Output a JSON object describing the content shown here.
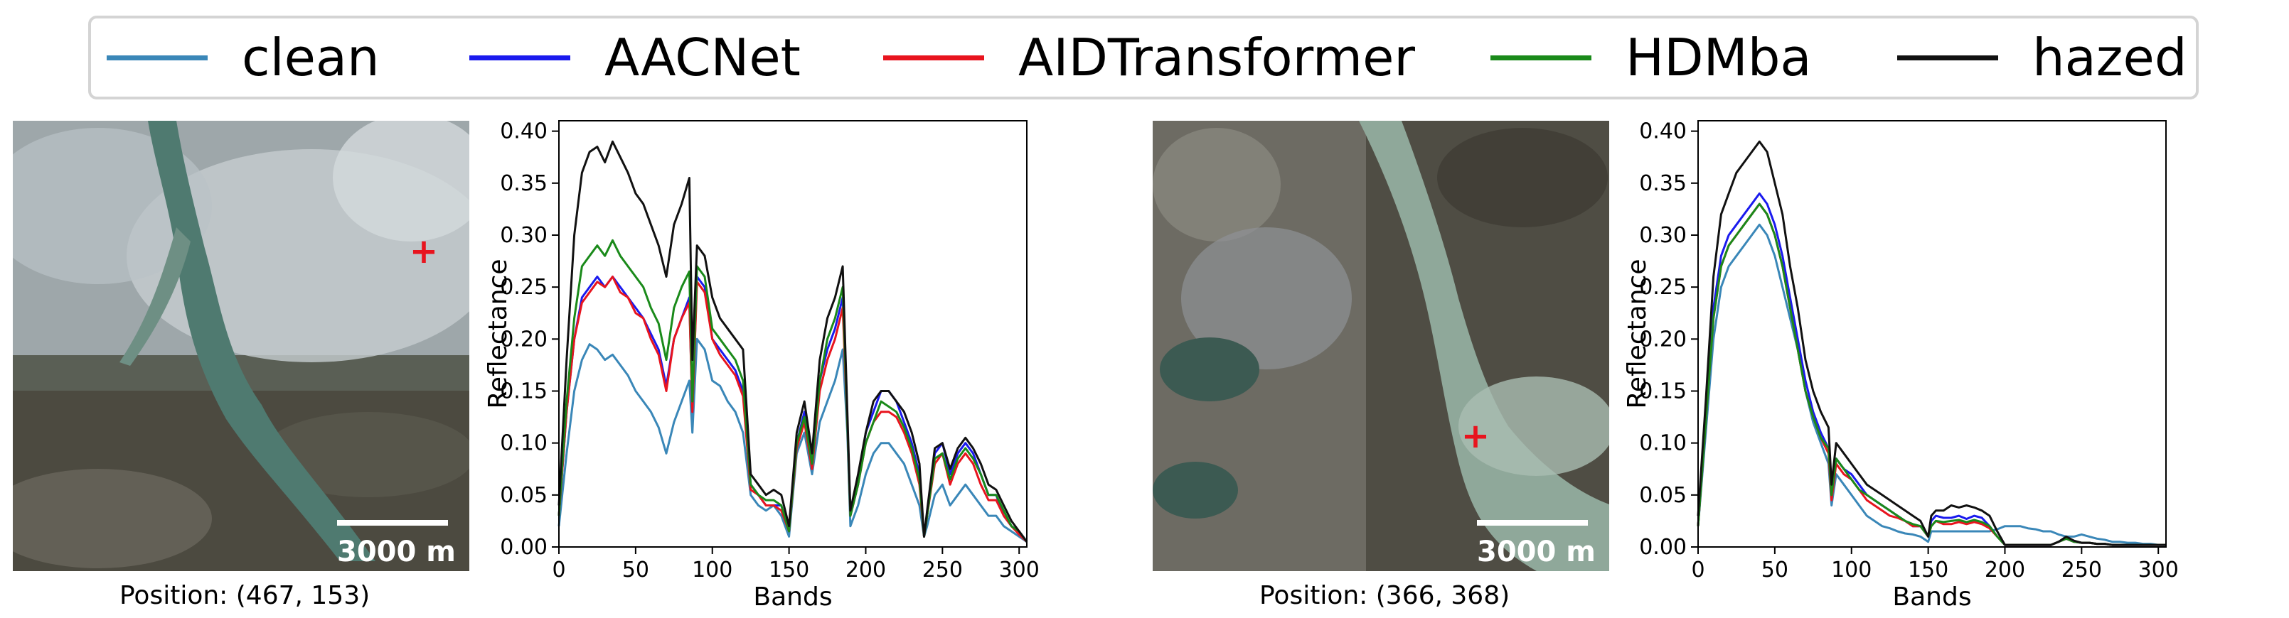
{
  "legend": {
    "items": [
      {
        "label": "clean",
        "color": "#3a87b8"
      },
      {
        "label": "AACNet",
        "color": "#1a1aee"
      },
      {
        "label": "AIDTransformer",
        "color": "#e8141e"
      },
      {
        "label": "HDMba",
        "color": "#1a8a1a"
      },
      {
        "label": "hazed",
        "color": "#111111"
      }
    ]
  },
  "scenes": [
    {
      "scale_label": "3000 m",
      "marker": "+",
      "caption": "Position: (467, 153)"
    },
    {
      "scale_label": "3000 m",
      "marker": "+",
      "caption": "Position: (366, 368)"
    }
  ],
  "chart_data": [
    {
      "type": "line",
      "xlabel": "Bands",
      "ylabel": "Reflectance",
      "xlim": [
        0,
        305
      ],
      "ylim": [
        0,
        0.41
      ],
      "xticks": [
        0,
        50,
        100,
        150,
        200,
        250,
        300
      ],
      "yticks": [
        0.0,
        0.05,
        0.1,
        0.15,
        0.2,
        0.25,
        0.3,
        0.35,
        0.4
      ],
      "x": [
        0,
        5,
        10,
        15,
        20,
        25,
        30,
        35,
        40,
        45,
        50,
        55,
        60,
        65,
        70,
        75,
        80,
        85,
        87,
        90,
        95,
        100,
        105,
        110,
        115,
        120,
        125,
        130,
        135,
        140,
        145,
        150,
        155,
        160,
        165,
        170,
        175,
        180,
        185,
        188,
        190,
        195,
        200,
        205,
        210,
        215,
        220,
        225,
        230,
        235,
        238,
        240,
        245,
        250,
        255,
        260,
        265,
        270,
        275,
        280,
        285,
        290,
        295,
        300,
        305
      ],
      "series": [
        {
          "name": "clean",
          "color": "#3a87b8",
          "values": [
            0.02,
            0.09,
            0.15,
            0.18,
            0.195,
            0.19,
            0.18,
            0.185,
            0.175,
            0.165,
            0.15,
            0.14,
            0.13,
            0.115,
            0.09,
            0.12,
            0.14,
            0.16,
            0.11,
            0.2,
            0.19,
            0.16,
            0.155,
            0.14,
            0.13,
            0.11,
            0.05,
            0.04,
            0.035,
            0.04,
            0.03,
            0.01,
            0.09,
            0.11,
            0.07,
            0.12,
            0.14,
            0.16,
            0.19,
            0.11,
            0.02,
            0.04,
            0.07,
            0.09,
            0.1,
            0.1,
            0.09,
            0.08,
            0.06,
            0.04,
            0.01,
            0.02,
            0.05,
            0.06,
            0.04,
            0.05,
            0.06,
            0.05,
            0.04,
            0.03,
            0.03,
            0.02,
            0.015,
            0.01,
            0.005
          ]
        },
        {
          "name": "AACNet",
          "color": "#1a1aee",
          "values": [
            0.03,
            0.13,
            0.2,
            0.24,
            0.25,
            0.26,
            0.25,
            0.26,
            0.25,
            0.24,
            0.23,
            0.22,
            0.205,
            0.19,
            0.155,
            0.2,
            0.22,
            0.24,
            0.13,
            0.26,
            0.25,
            0.2,
            0.19,
            0.18,
            0.17,
            0.15,
            0.06,
            0.05,
            0.04,
            0.04,
            0.04,
            0.015,
            0.1,
            0.13,
            0.08,
            0.16,
            0.19,
            0.21,
            0.24,
            0.12,
            0.03,
            0.06,
            0.11,
            0.13,
            0.15,
            0.15,
            0.14,
            0.12,
            0.1,
            0.07,
            0.01,
            0.03,
            0.09,
            0.1,
            0.07,
            0.09,
            0.1,
            0.09,
            0.07,
            0.05,
            0.05,
            0.03,
            0.02,
            0.015,
            0.005
          ]
        },
        {
          "name": "AIDTransformer",
          "color": "#e8141e",
          "values": [
            0.03,
            0.13,
            0.2,
            0.235,
            0.245,
            0.255,
            0.25,
            0.26,
            0.245,
            0.24,
            0.225,
            0.22,
            0.2,
            0.185,
            0.15,
            0.2,
            0.22,
            0.235,
            0.13,
            0.255,
            0.245,
            0.2,
            0.185,
            0.175,
            0.165,
            0.145,
            0.055,
            0.05,
            0.04,
            0.04,
            0.035,
            0.015,
            0.095,
            0.12,
            0.075,
            0.15,
            0.18,
            0.2,
            0.23,
            0.12,
            0.03,
            0.06,
            0.1,
            0.12,
            0.13,
            0.13,
            0.125,
            0.11,
            0.09,
            0.06,
            0.01,
            0.03,
            0.08,
            0.09,
            0.06,
            0.08,
            0.09,
            0.08,
            0.06,
            0.045,
            0.045,
            0.03,
            0.02,
            0.012,
            0.005
          ]
        },
        {
          "name": "HDMba",
          "color": "#1a8a1a",
          "values": [
            0.03,
            0.14,
            0.22,
            0.27,
            0.28,
            0.29,
            0.28,
            0.295,
            0.28,
            0.27,
            0.26,
            0.25,
            0.23,
            0.215,
            0.18,
            0.23,
            0.25,
            0.265,
            0.14,
            0.27,
            0.26,
            0.21,
            0.2,
            0.19,
            0.18,
            0.16,
            0.06,
            0.05,
            0.045,
            0.045,
            0.04,
            0.015,
            0.1,
            0.125,
            0.08,
            0.16,
            0.2,
            0.22,
            0.25,
            0.12,
            0.03,
            0.06,
            0.1,
            0.12,
            0.14,
            0.135,
            0.13,
            0.115,
            0.095,
            0.065,
            0.01,
            0.03,
            0.085,
            0.09,
            0.065,
            0.085,
            0.095,
            0.085,
            0.07,
            0.05,
            0.05,
            0.035,
            0.02,
            0.015,
            0.005
          ]
        },
        {
          "name": "hazed",
          "color": "#111111",
          "values": [
            0.04,
            0.18,
            0.3,
            0.36,
            0.38,
            0.385,
            0.37,
            0.39,
            0.375,
            0.36,
            0.34,
            0.33,
            0.31,
            0.29,
            0.26,
            0.31,
            0.33,
            0.355,
            0.18,
            0.29,
            0.28,
            0.24,
            0.22,
            0.21,
            0.2,
            0.19,
            0.07,
            0.06,
            0.05,
            0.055,
            0.05,
            0.02,
            0.11,
            0.14,
            0.09,
            0.18,
            0.22,
            0.24,
            0.27,
            0.13,
            0.035,
            0.07,
            0.11,
            0.14,
            0.15,
            0.15,
            0.14,
            0.13,
            0.11,
            0.08,
            0.01,
            0.035,
            0.095,
            0.1,
            0.075,
            0.095,
            0.105,
            0.095,
            0.08,
            0.06,
            0.055,
            0.04,
            0.025,
            0.015,
            0.005
          ]
        }
      ]
    },
    {
      "type": "line",
      "xlabel": "Bands",
      "ylabel": "Reflectance",
      "xlim": [
        0,
        305
      ],
      "ylim": [
        0,
        0.41
      ],
      "xticks": [
        0,
        50,
        100,
        150,
        200,
        250,
        300
      ],
      "yticks": [
        0.0,
        0.05,
        0.1,
        0.15,
        0.2,
        0.25,
        0.3,
        0.35,
        0.4
      ],
      "x": [
        0,
        5,
        10,
        15,
        20,
        25,
        30,
        35,
        40,
        45,
        50,
        55,
        60,
        65,
        70,
        75,
        80,
        85,
        87,
        90,
        95,
        100,
        105,
        110,
        115,
        120,
        125,
        130,
        135,
        140,
        145,
        150,
        152,
        155,
        160,
        165,
        170,
        175,
        180,
        185,
        190,
        195,
        200,
        205,
        210,
        215,
        220,
        225,
        230,
        235,
        240,
        245,
        250,
        255,
        260,
        265,
        270,
        275,
        280,
        285,
        290,
        295,
        300,
        305
      ],
      "series": [
        {
          "name": "clean",
          "color": "#3a87b8",
          "values": [
            0.02,
            0.11,
            0.2,
            0.25,
            0.27,
            0.28,
            0.29,
            0.3,
            0.31,
            0.3,
            0.28,
            0.25,
            0.22,
            0.19,
            0.15,
            0.12,
            0.1,
            0.08,
            0.04,
            0.07,
            0.06,
            0.05,
            0.04,
            0.03,
            0.025,
            0.02,
            0.018,
            0.015,
            0.013,
            0.012,
            0.01,
            0.005,
            0.015,
            0.015,
            0.015,
            0.015,
            0.015,
            0.015,
            0.015,
            0.015,
            0.015,
            0.017,
            0.02,
            0.02,
            0.02,
            0.018,
            0.017,
            0.015,
            0.015,
            0.012,
            0.01,
            0.01,
            0.012,
            0.01,
            0.008,
            0.007,
            0.005,
            0.005,
            0.004,
            0.004,
            0.003,
            0.003,
            0.002,
            0.002
          ]
        },
        {
          "name": "AACNet",
          "color": "#1a1aee",
          "values": [
            0.02,
            0.12,
            0.23,
            0.28,
            0.3,
            0.31,
            0.32,
            0.33,
            0.34,
            0.33,
            0.31,
            0.28,
            0.24,
            0.2,
            0.16,
            0.13,
            0.11,
            0.095,
            0.05,
            0.085,
            0.075,
            0.07,
            0.06,
            0.05,
            0.045,
            0.04,
            0.035,
            0.03,
            0.025,
            0.02,
            0.02,
            0.01,
            0.025,
            0.03,
            0.028,
            0.028,
            0.03,
            0.027,
            0.03,
            0.028,
            0.02,
            0.01,
            0.002,
            0.002,
            0.002,
            0.002,
            0.002,
            0.002,
            0.002,
            0.005,
            0.008,
            0.005,
            0.004,
            0.004,
            0.003,
            0.003,
            0.002,
            0.002,
            0.002,
            0.002,
            0.002,
            0.002,
            0.002,
            0.002
          ]
        },
        {
          "name": "AIDTransformer",
          "color": "#e8141e",
          "values": [
            0.02,
            0.12,
            0.22,
            0.27,
            0.29,
            0.3,
            0.31,
            0.32,
            0.33,
            0.32,
            0.3,
            0.27,
            0.23,
            0.19,
            0.15,
            0.125,
            0.105,
            0.09,
            0.045,
            0.08,
            0.07,
            0.065,
            0.055,
            0.045,
            0.04,
            0.035,
            0.03,
            0.028,
            0.025,
            0.02,
            0.02,
            0.01,
            0.02,
            0.025,
            0.022,
            0.022,
            0.024,
            0.022,
            0.024,
            0.022,
            0.018,
            0.01,
            0.002,
            0.002,
            0.002,
            0.002,
            0.002,
            0.002,
            0.002,
            0.005,
            0.008,
            0.005,
            0.004,
            0.004,
            0.003,
            0.003,
            0.002,
            0.002,
            0.002,
            0.002,
            0.002,
            0.002,
            0.002,
            0.002
          ]
        },
        {
          "name": "HDMba",
          "color": "#1a8a1a",
          "values": [
            0.02,
            0.12,
            0.22,
            0.27,
            0.29,
            0.3,
            0.31,
            0.32,
            0.33,
            0.32,
            0.3,
            0.27,
            0.23,
            0.19,
            0.15,
            0.125,
            0.105,
            0.095,
            0.05,
            0.085,
            0.075,
            0.065,
            0.055,
            0.05,
            0.045,
            0.04,
            0.035,
            0.03,
            0.025,
            0.022,
            0.02,
            0.01,
            0.02,
            0.025,
            0.024,
            0.025,
            0.026,
            0.024,
            0.026,
            0.024,
            0.02,
            0.01,
            0.002,
            0.002,
            0.002,
            0.002,
            0.002,
            0.002,
            0.002,
            0.005,
            0.008,
            0.005,
            0.004,
            0.004,
            0.003,
            0.003,
            0.002,
            0.002,
            0.002,
            0.002,
            0.002,
            0.002,
            0.002,
            0.002
          ]
        },
        {
          "name": "hazed",
          "color": "#111111",
          "values": [
            0.03,
            0.14,
            0.26,
            0.32,
            0.34,
            0.36,
            0.37,
            0.38,
            0.39,
            0.38,
            0.35,
            0.32,
            0.27,
            0.23,
            0.18,
            0.15,
            0.13,
            0.115,
            0.06,
            0.1,
            0.09,
            0.08,
            0.07,
            0.06,
            0.055,
            0.05,
            0.045,
            0.04,
            0.035,
            0.03,
            0.025,
            0.01,
            0.03,
            0.035,
            0.035,
            0.04,
            0.038,
            0.04,
            0.038,
            0.035,
            0.03,
            0.015,
            0.002,
            0.002,
            0.002,
            0.002,
            0.002,
            0.002,
            0.002,
            0.005,
            0.01,
            0.006,
            0.004,
            0.004,
            0.003,
            0.003,
            0.002,
            0.002,
            0.002,
            0.002,
            0.002,
            0.002,
            0.002,
            0.002
          ]
        }
      ]
    }
  ]
}
